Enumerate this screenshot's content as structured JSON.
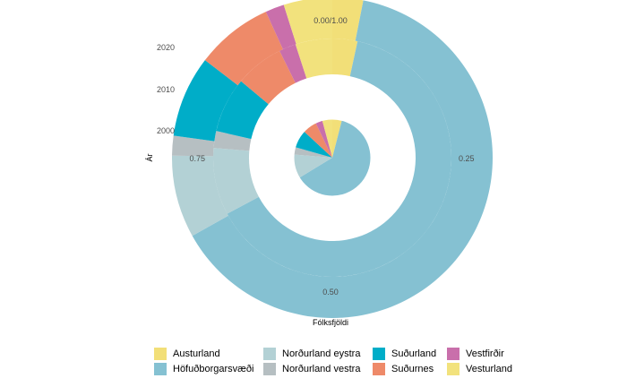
{
  "chart_data": {
    "type": "pie",
    "subtype": "concentric-rings",
    "xlabel": "Fólksfjöldi",
    "ylabel": "Ár",
    "theta_ticks": [
      {
        "value": 0.0,
        "label": "0.00/1.00"
      },
      {
        "value": 0.25,
        "label": "0.25"
      },
      {
        "value": 0.5,
        "label": "0.50"
      },
      {
        "value": 0.75,
        "label": "0.75"
      }
    ],
    "rings": [
      "2000",
      "2010",
      "2020"
    ],
    "series": [
      {
        "name": "Austurland",
        "color": "#F2DF78",
        "values": [
          0.04,
          0.034,
          0.031
        ]
      },
      {
        "name": "Höfuðborgarsvæði",
        "color": "#85C1D2",
        "values": [
          0.623,
          0.638,
          0.638
        ]
      },
      {
        "name": "Norðurland eystra",
        "color": "#B3D1D5",
        "values": [
          0.1,
          0.091,
          0.083
        ]
      },
      {
        "name": "Norðurland vestra",
        "color": "#B6BFC2",
        "values": [
          0.031,
          0.023,
          0.02
        ]
      },
      {
        "name": "Suðurland",
        "color": "#00ADC8",
        "values": [
          0.075,
          0.075,
          0.082
        ]
      },
      {
        "name": "Suðurnes",
        "color": "#EE8A69",
        "values": [
          0.06,
          0.066,
          0.078
        ]
      },
      {
        "name": "Vestfirðir",
        "color": "#C96FAB",
        "values": [
          0.029,
          0.023,
          0.019
        ]
      },
      {
        "name": "Vesturland",
        "color": "#F2E27D",
        "values": [
          0.042,
          0.05,
          0.049
        ]
      }
    ],
    "grid": false,
    "legend_position": "bottom"
  }
}
